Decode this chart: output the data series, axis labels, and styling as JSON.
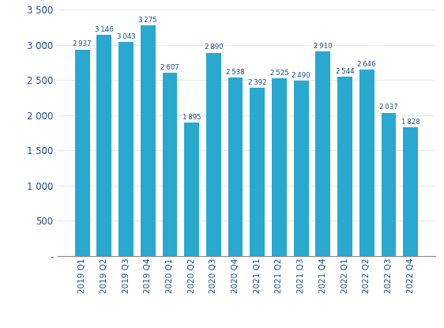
{
  "categories": [
    "2019 Q1",
    "2019 Q2",
    "2019 Q3",
    "2019 Q4",
    "2020 Q1",
    "2020 Q2",
    "2020 Q3",
    "2020 Q4",
    "2021 Q1",
    "2021 Q2",
    "2021 Q3",
    "2021 Q4",
    "2022 Q1",
    "2022 Q2",
    "2022 Q3",
    "2022 Q4"
  ],
  "values": [
    2937,
    3146,
    3043,
    3275,
    2607,
    1895,
    2890,
    2538,
    2392,
    2525,
    2490,
    2910,
    2544,
    2646,
    2037,
    1828
  ],
  "bar_color": "#29A8D0",
  "ylim": [
    0,
    3500
  ],
  "yticks": [
    0,
    500,
    1000,
    1500,
    2000,
    2500,
    3000,
    3500
  ],
  "ytick_labels": [
    "-",
    "500",
    "1 000",
    "1 500",
    "2 000",
    "2 500",
    "3 000",
    "3 500"
  ],
  "label_color": "#1A4E8C",
  "axis_color": "#888888",
  "background_color": "#ffffff",
  "bar_label_fontsize": 6.2,
  "tick_label_fontsize": 7.5,
  "ytick_fontsize": 8.5
}
